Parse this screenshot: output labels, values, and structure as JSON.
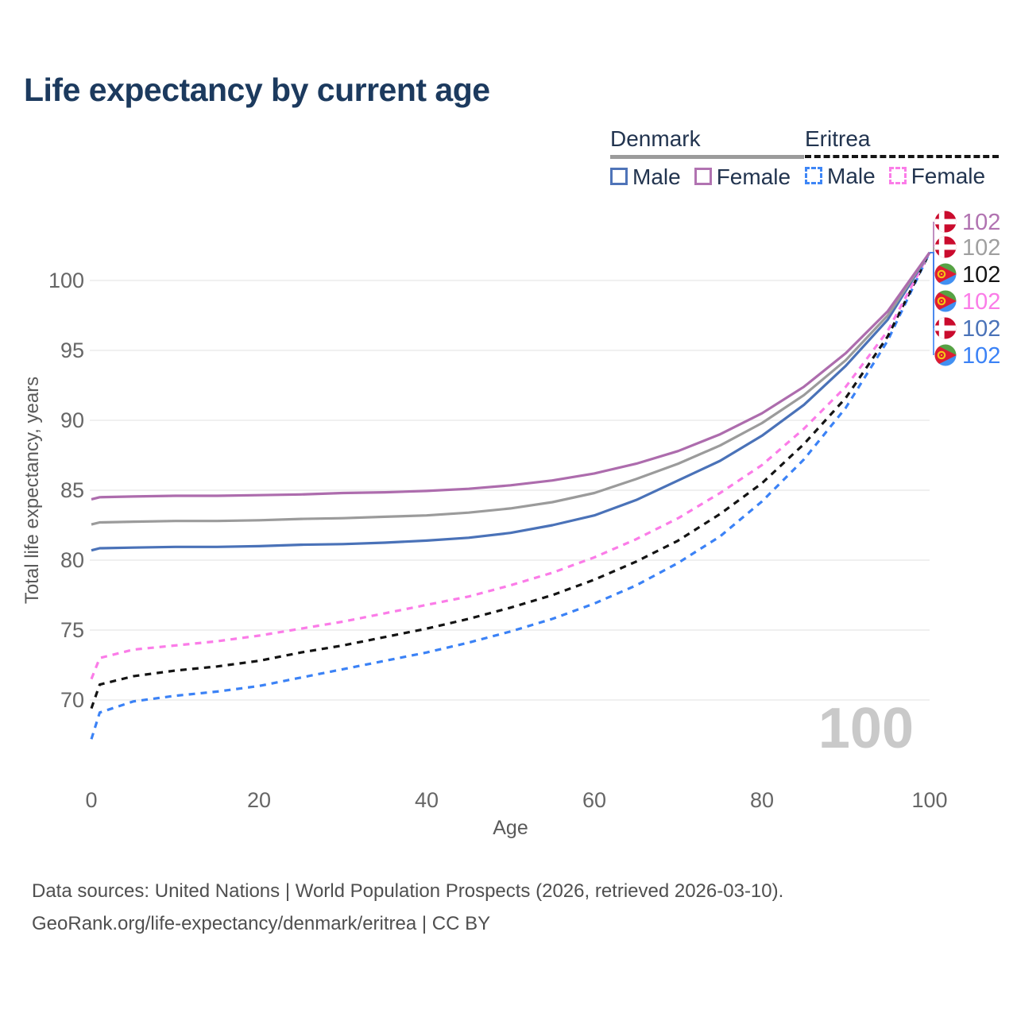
{
  "title": "Life expectancy by current age",
  "legend": {
    "groups": [
      {
        "country": "Denmark",
        "line_style": "solid",
        "underline_color": "#9b9b9b",
        "items": [
          {
            "label": "Male",
            "color": "#4f74b8"
          },
          {
            "label": "Female",
            "color": "#b173b1"
          }
        ]
      },
      {
        "country": "Eritrea",
        "line_style": "dashed",
        "underline_color": "#151515",
        "items": [
          {
            "label": "Male",
            "color": "#3e86f6"
          },
          {
            "label": "Female",
            "color": "#fb7ce8"
          }
        ]
      }
    ]
  },
  "watermark": "100",
  "axes": {
    "x": {
      "label": "Age",
      "ticks": [
        0,
        20,
        40,
        60,
        80,
        100
      ],
      "range": [
        0,
        100
      ]
    },
    "y": {
      "label": "Total life expectancy, years",
      "ticks": [
        70,
        75,
        80,
        85,
        90,
        95,
        100
      ]
    }
  },
  "chart_data": {
    "type": "line",
    "title": "Life expectancy by current age",
    "xlabel": "Age",
    "ylabel": "Total life expectancy, years",
    "x": [
      0,
      1,
      5,
      10,
      15,
      20,
      25,
      30,
      35,
      40,
      45,
      50,
      55,
      60,
      65,
      70,
      75,
      80,
      85,
      90,
      95,
      100
    ],
    "series": [
      {
        "name": "Eritrea Male",
        "country": "Eritrea",
        "sex": "male",
        "style": "dashed",
        "color": "#3b82f6",
        "values": [
          67.2,
          69.1,
          69.9,
          70.3,
          70.6,
          71.0,
          71.6,
          72.2,
          72.8,
          73.4,
          74.1,
          74.9,
          75.8,
          76.9,
          78.2,
          79.8,
          81.7,
          84.2,
          87.2,
          90.9,
          95.7,
          102
        ],
        "end_label": "102"
      },
      {
        "name": "Eritrea",
        "country": "Eritrea",
        "sex": "all",
        "style": "dashed",
        "color": "#141414",
        "values": [
          69.4,
          71.1,
          71.7,
          72.1,
          72.4,
          72.8,
          73.4,
          73.9,
          74.5,
          75.1,
          75.8,
          76.6,
          77.5,
          78.6,
          79.9,
          81.4,
          83.3,
          85.5,
          88.3,
          91.6,
          96.0,
          102
        ],
        "end_label": "102"
      },
      {
        "name": "Eritrea Female",
        "country": "Eritrea",
        "sex": "female",
        "style": "dashed",
        "color": "#fb7ce8",
        "values": [
          71.5,
          73.0,
          73.6,
          73.9,
          74.2,
          74.6,
          75.1,
          75.6,
          76.2,
          76.8,
          77.4,
          78.2,
          79.1,
          80.2,
          81.5,
          83.0,
          84.8,
          86.8,
          89.4,
          92.4,
          96.4,
          102
        ],
        "end_label": "102"
      },
      {
        "name": "Denmark Male",
        "country": "Denmark",
        "sex": "male",
        "style": "solid",
        "color": "#4a72b8",
        "values": [
          80.7,
          80.85,
          80.9,
          80.95,
          80.95,
          81.0,
          81.1,
          81.15,
          81.25,
          81.4,
          81.6,
          81.95,
          82.5,
          83.2,
          84.3,
          85.7,
          87.1,
          88.9,
          91.1,
          93.9,
          97.2,
          102
        ],
        "end_label": "102"
      },
      {
        "name": "Denmark",
        "country": "Denmark",
        "sex": "all",
        "style": "solid",
        "color": "#9b9b9b",
        "values": [
          82.55,
          82.7,
          82.75,
          82.8,
          82.8,
          82.85,
          82.95,
          83.0,
          83.1,
          83.2,
          83.4,
          83.7,
          84.15,
          84.8,
          85.8,
          86.9,
          88.2,
          89.8,
          91.8,
          94.3,
          97.5,
          102
        ],
        "end_label": "102"
      },
      {
        "name": "Denmark Female",
        "country": "Denmark",
        "sex": "female",
        "style": "solid",
        "color": "#ad6cad",
        "values": [
          84.35,
          84.5,
          84.55,
          84.6,
          84.6,
          84.65,
          84.7,
          84.8,
          84.85,
          84.95,
          85.1,
          85.35,
          85.7,
          86.2,
          86.9,
          87.8,
          89.0,
          90.5,
          92.4,
          94.8,
          97.8,
          102
        ],
        "end_label": "102"
      }
    ]
  },
  "right_labels": [
    {
      "flag": "denmark",
      "series": "Denmark Female",
      "value": "102",
      "color": "#b173b1"
    },
    {
      "flag": "denmark",
      "series": "Denmark",
      "value": "102",
      "color": "#9f9f9f"
    },
    {
      "flag": "eritrea",
      "series": "Eritrea",
      "value": "102",
      "color": "#141414"
    },
    {
      "flag": "eritrea",
      "series": "Eritrea Female",
      "value": "102",
      "color": "#fb7ce8"
    },
    {
      "flag": "denmark",
      "series": "Denmark Male",
      "value": "102",
      "color": "#4a72b8"
    },
    {
      "flag": "eritrea",
      "series": "Eritrea Male",
      "value": "102",
      "color": "#3b82f6"
    }
  ],
  "footer": {
    "line1": "Data sources: United Nations | World Population Prospects (2026, retrieved 2026-03-10).",
    "line2": "GeoRank.org/life-expectancy/denmark/eritrea | CC BY"
  }
}
